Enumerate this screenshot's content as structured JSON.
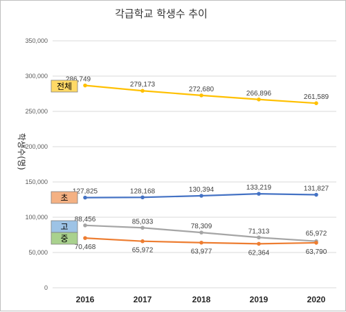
{
  "chart_data": {
    "type": "line",
    "title": "각급학교 학생수 추이",
    "ylabel": "학생수(명)",
    "xlabel": "",
    "categories": [
      "2016",
      "2017",
      "2018",
      "2019",
      "2020"
    ],
    "ylim": [
      0,
      350000
    ],
    "yticks": [
      "0",
      "50,000",
      "100,000",
      "150,000",
      "200,000",
      "250,000",
      "300,000",
      "350,000"
    ],
    "ytick_values": [
      0,
      50000,
      100000,
      150000,
      200000,
      250000,
      300000,
      350000
    ],
    "grid": true,
    "series": [
      {
        "name": "전체",
        "color": "#FFC000",
        "tag_color": "#FFD966",
        "values": [
          286749,
          279173,
          272680,
          266896,
          261589
        ],
        "labels": [
          "286,749",
          "279,173",
          "272,680",
          "266,896",
          "261,589"
        ]
      },
      {
        "name": "초",
        "color": "#4472C4",
        "tag_color": "#F4B183",
        "values": [
          127825,
          128168,
          130394,
          133219,
          131827
        ],
        "labels": [
          "127,825",
          "128,168",
          "130,394",
          "133,219",
          "131,827"
        ]
      },
      {
        "name": "고",
        "color": "#A5A5A5",
        "tag_color": "#9DC3E6",
        "values": [
          88456,
          85033,
          78309,
          71313,
          65972
        ],
        "labels": [
          "88,456",
          "85,033",
          "78,309",
          "71,313",
          "65,972"
        ]
      },
      {
        "name": "중",
        "color": "#ED7D31",
        "tag_color": "#A9D18E",
        "values": [
          70468,
          65972,
          63977,
          62364,
          63790
        ],
        "labels": [
          "70,468",
          "65,972",
          "63,977",
          "62,364",
          "63,790"
        ]
      }
    ]
  }
}
